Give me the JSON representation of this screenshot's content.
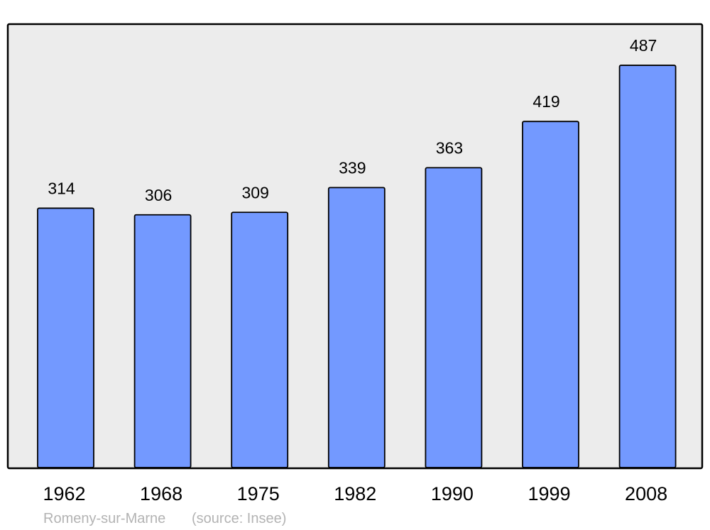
{
  "chart_data": {
    "type": "bar",
    "categories": [
      "1962",
      "1968",
      "1975",
      "1982",
      "1990",
      "1999",
      "2008"
    ],
    "values": [
      314,
      306,
      309,
      339,
      363,
      419,
      487
    ],
    "title": "",
    "xlabel": "",
    "ylabel": "",
    "ylim": [
      0,
      536
    ],
    "grid": false,
    "data_labels": true,
    "caption": "Romeny-sur-Marne",
    "source": "(source: Insee)",
    "colors": {
      "bar": "#7399ff",
      "plot_background": "#ececec",
      "border": "#000000",
      "caption": "#b3b3b3"
    }
  }
}
